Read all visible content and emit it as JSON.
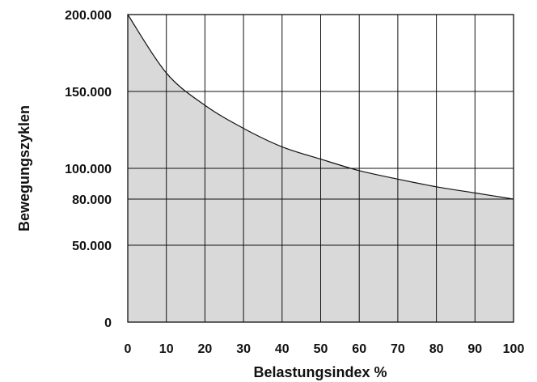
{
  "chart_data": {
    "type": "area",
    "xlabel": "Belastungsindex %",
    "ylabel": "Bewegungszyklen",
    "xlim": [
      0,
      100
    ],
    "ylim": [
      0,
      200000
    ],
    "x_ticks": [
      0,
      10,
      20,
      30,
      40,
      50,
      60,
      70,
      80,
      90,
      100
    ],
    "x_tick_labels": [
      "0",
      "10",
      "20",
      "30",
      "40",
      "50",
      "60",
      "70",
      "80",
      "90",
      "100"
    ],
    "y_ticks": [
      0,
      50000,
      80000,
      100000,
      150000,
      200000
    ],
    "y_tick_labels": [
      "0",
      "50.000",
      "80.000",
      "100.000",
      "150.000",
      "200.000"
    ],
    "grid": true,
    "fill_color": "#d9d9d9",
    "line_color": "#111111",
    "series": [
      {
        "x": [
          0,
          10,
          20,
          30,
          40,
          50,
          60,
          70,
          80,
          90,
          100
        ],
        "y": [
          200000,
          162000,
          141000,
          126000,
          114000,
          106000,
          98500,
          93000,
          88000,
          84000,
          80000
        ]
      }
    ]
  }
}
